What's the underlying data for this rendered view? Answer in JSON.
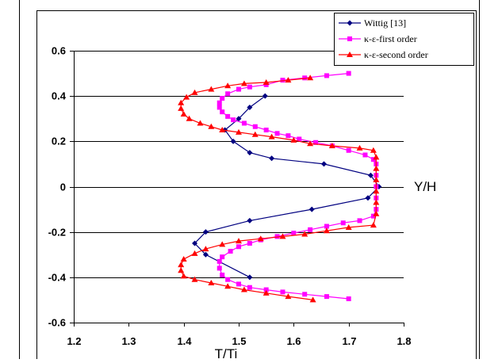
{
  "chart_data": {
    "type": "line",
    "xlabel": "T/Ti",
    "ylabel": "Y/H",
    "xlim": [
      1.2,
      1.8
    ],
    "ylim": [
      -0.6,
      0.6
    ],
    "x_ticks": [
      "1.2",
      "1.3",
      "1.4",
      "1.5",
      "1.6",
      "1.7",
      "1.8"
    ],
    "y_ticks": [
      "0.6",
      "0.4",
      "0.2",
      "0",
      "-0.2",
      "-0.4",
      "-0.6"
    ],
    "grid": "horizontal",
    "legend_position": "top-right",
    "series": [
      {
        "name": "Wittig [13]",
        "color": "#000080",
        "marker": "diamond",
        "points": [
          [
            1.548,
            0.4
          ],
          [
            1.52,
            0.35
          ],
          [
            1.5,
            0.3
          ],
          [
            1.475,
            0.25
          ],
          [
            1.49,
            0.2
          ],
          [
            1.52,
            0.15
          ],
          [
            1.56,
            0.125
          ],
          [
            1.655,
            0.1
          ],
          [
            1.74,
            0.05
          ],
          [
            1.755,
            0.0
          ],
          [
            1.735,
            -0.05
          ],
          [
            1.633,
            -0.1
          ],
          [
            1.52,
            -0.15
          ],
          [
            1.44,
            -0.2
          ],
          [
            1.42,
            -0.25
          ],
          [
            1.44,
            -0.3
          ],
          [
            1.52,
            -0.4
          ]
        ]
      },
      {
        "name": "κ-ε-first order",
        "color": "#FF00FF",
        "marker": "square",
        "points": [
          [
            1.7,
            0.5
          ],
          [
            1.66,
            0.49
          ],
          [
            1.62,
            0.48
          ],
          [
            1.58,
            0.47
          ],
          [
            1.55,
            0.45
          ],
          [
            1.52,
            0.44
          ],
          [
            1.5,
            0.43
          ],
          [
            1.48,
            0.41
          ],
          [
            1.47,
            0.39
          ],
          [
            1.465,
            0.37
          ],
          [
            1.465,
            0.35
          ],
          [
            1.47,
            0.33
          ],
          [
            1.48,
            0.31
          ],
          [
            1.49,
            0.295
          ],
          [
            1.51,
            0.28
          ],
          [
            1.53,
            0.265
          ],
          [
            1.55,
            0.25
          ],
          [
            1.57,
            0.235
          ],
          [
            1.59,
            0.225
          ],
          [
            1.61,
            0.21
          ],
          [
            1.64,
            0.195
          ],
          [
            1.67,
            0.18
          ],
          [
            1.7,
            0.16
          ],
          [
            1.73,
            0.14
          ],
          [
            1.745,
            0.12
          ],
          [
            1.75,
            0.1
          ],
          [
            1.75,
            0.05
          ],
          [
            1.75,
            0.0
          ],
          [
            1.75,
            -0.05
          ],
          [
            1.75,
            -0.1
          ],
          [
            1.745,
            -0.13
          ],
          [
            1.72,
            -0.15
          ],
          [
            1.69,
            -0.16
          ],
          [
            1.66,
            -0.175
          ],
          [
            1.63,
            -0.19
          ],
          [
            1.6,
            -0.205
          ],
          [
            1.57,
            -0.22
          ],
          [
            1.54,
            -0.235
          ],
          [
            1.52,
            -0.25
          ],
          [
            1.5,
            -0.265
          ],
          [
            1.485,
            -0.285
          ],
          [
            1.47,
            -0.31
          ],
          [
            1.465,
            -0.33
          ],
          [
            1.465,
            -0.36
          ],
          [
            1.47,
            -0.39
          ],
          [
            1.48,
            -0.41
          ],
          [
            1.5,
            -0.43
          ],
          [
            1.52,
            -0.445
          ],
          [
            1.55,
            -0.455
          ],
          [
            1.58,
            -0.465
          ],
          [
            1.62,
            -0.475
          ],
          [
            1.66,
            -0.485
          ],
          [
            1.7,
            -0.495
          ]
        ]
      },
      {
        "name": "κ-ε-second order",
        "color": "#FF0000",
        "marker": "triangle",
        "points": [
          [
            1.63,
            0.48
          ],
          [
            1.59,
            0.47
          ],
          [
            1.55,
            0.46
          ],
          [
            1.51,
            0.455
          ],
          [
            1.48,
            0.445
          ],
          [
            1.45,
            0.43
          ],
          [
            1.42,
            0.415
          ],
          [
            1.405,
            0.395
          ],
          [
            1.395,
            0.37
          ],
          [
            1.395,
            0.345
          ],
          [
            1.4,
            0.32
          ],
          [
            1.41,
            0.3
          ],
          [
            1.43,
            0.28
          ],
          [
            1.45,
            0.265
          ],
          [
            1.47,
            0.25
          ],
          [
            1.5,
            0.24
          ],
          [
            1.53,
            0.23
          ],
          [
            1.56,
            0.22
          ],
          [
            1.6,
            0.205
          ],
          [
            1.63,
            0.19
          ],
          [
            1.67,
            0.18
          ],
          [
            1.72,
            0.17
          ],
          [
            1.745,
            0.16
          ],
          [
            1.75,
            0.13
          ],
          [
            1.75,
            0.08
          ],
          [
            1.75,
            0.03
          ],
          [
            1.75,
            -0.02
          ],
          [
            1.75,
            -0.07
          ],
          [
            1.75,
            -0.12
          ],
          [
            1.745,
            -0.17
          ],
          [
            1.7,
            -0.18
          ],
          [
            1.66,
            -0.195
          ],
          [
            1.62,
            -0.21
          ],
          [
            1.58,
            -0.22
          ],
          [
            1.54,
            -0.23
          ],
          [
            1.5,
            -0.24
          ],
          [
            1.47,
            -0.255
          ],
          [
            1.44,
            -0.275
          ],
          [
            1.42,
            -0.295
          ],
          [
            1.4,
            -0.32
          ],
          [
            1.395,
            -0.345
          ],
          [
            1.395,
            -0.37
          ],
          [
            1.4,
            -0.395
          ],
          [
            1.42,
            -0.41
          ],
          [
            1.45,
            -0.425
          ],
          [
            1.48,
            -0.44
          ],
          [
            1.51,
            -0.455
          ],
          [
            1.55,
            -0.47
          ],
          [
            1.59,
            -0.485
          ],
          [
            1.635,
            -0.5
          ]
        ]
      }
    ]
  }
}
